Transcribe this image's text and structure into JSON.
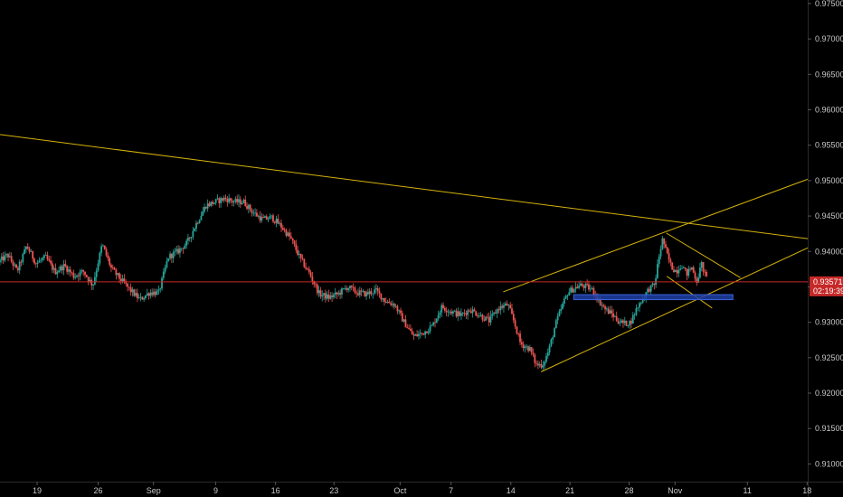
{
  "chart_data": {
    "type": "candlestick",
    "instrument": "",
    "ylim": [
      0.9075,
      0.9755
    ],
    "xlim": [
      0,
      128.4
    ],
    "y_ticks": [
      "0.97500",
      "0.97000",
      "0.96500",
      "0.96000",
      "0.95500",
      "0.95000",
      "0.94500",
      "0.94000",
      "0.93500",
      "0.93000",
      "0.92500",
      "0.92000",
      "0.91500",
      "0.91000"
    ],
    "y_tick_values": [
      0.975,
      0.97,
      0.965,
      0.96,
      0.955,
      0.95,
      0.945,
      0.94,
      0.935,
      0.93,
      0.925,
      0.92,
      0.915,
      0.91
    ],
    "x_ticks": [
      {
        "label": "19",
        "x": 5.9
      },
      {
        "label": "26",
        "x": 15.6
      },
      {
        "label": "Sep",
        "x": 24.4
      },
      {
        "label": "9",
        "x": 34.3
      },
      {
        "label": "16",
        "x": 43.8
      },
      {
        "label": "23",
        "x": 53.1
      },
      {
        "label": "Oct",
        "x": 63.6
      },
      {
        "label": "7",
        "x": 71.7
      },
      {
        "label": "14",
        "x": 81.2
      },
      {
        "label": "21",
        "x": 90.6
      },
      {
        "label": "28",
        "x": 100.0
      },
      {
        "label": "Nov",
        "x": 107.3
      },
      {
        "label": "11",
        "x": 118.8
      },
      {
        "label": "18",
        "x": 128.3
      }
    ],
    "colors": {
      "up": "#26a69a",
      "down": "#ef5350",
      "trend": "#d4b10c",
      "zone": "#1e3fa6",
      "price": "#c62828",
      "background": "#000000",
      "axis": "#2a2a2a"
    },
    "price_line": {
      "value": 0.93571,
      "label": "0.93571",
      "countdown": "02:19:39"
    },
    "anchors": [
      {
        "x": 0.0,
        "y": 0.9385
      },
      {
        "x": 1.5,
        "y": 0.9395
      },
      {
        "x": 3.0,
        "y": 0.9372
      },
      {
        "x": 4.5,
        "y": 0.9408
      },
      {
        "x": 6.0,
        "y": 0.9383
      },
      {
        "x": 7.5,
        "y": 0.9392
      },
      {
        "x": 9.0,
        "y": 0.9371
      },
      {
        "x": 10.5,
        "y": 0.938
      },
      {
        "x": 12.0,
        "y": 0.9365
      },
      {
        "x": 13.5,
        "y": 0.9372
      },
      {
        "x": 15.0,
        "y": 0.9352
      },
      {
        "x": 16.5,
        "y": 0.941
      },
      {
        "x": 18.0,
        "y": 0.9375
      },
      {
        "x": 19.5,
        "y": 0.936
      },
      {
        "x": 21.0,
        "y": 0.9345
      },
      {
        "x": 22.5,
        "y": 0.9332
      },
      {
        "x": 24.0,
        "y": 0.9342
      },
      {
        "x": 25.5,
        "y": 0.9342
      },
      {
        "x": 27.0,
        "y": 0.9392
      },
      {
        "x": 28.5,
        "y": 0.94
      },
      {
        "x": 30.0,
        "y": 0.9412
      },
      {
        "x": 31.5,
        "y": 0.944
      },
      {
        "x": 33.0,
        "y": 0.9465
      },
      {
        "x": 34.5,
        "y": 0.947
      },
      {
        "x": 36.0,
        "y": 0.9475
      },
      {
        "x": 37.5,
        "y": 0.947
      },
      {
        "x": 39.0,
        "y": 0.947
      },
      {
        "x": 40.5,
        "y": 0.9455
      },
      {
        "x": 42.0,
        "y": 0.9445
      },
      {
        "x": 43.5,
        "y": 0.9448
      },
      {
        "x": 45.0,
        "y": 0.9435
      },
      {
        "x": 46.5,
        "y": 0.9418
      },
      {
        "x": 48.0,
        "y": 0.939
      },
      {
        "x": 49.5,
        "y": 0.9368
      },
      {
        "x": 51.0,
        "y": 0.934
      },
      {
        "x": 52.5,
        "y": 0.9335
      },
      {
        "x": 54.0,
        "y": 0.934
      },
      {
        "x": 55.5,
        "y": 0.935
      },
      {
        "x": 57.0,
        "y": 0.9342
      },
      {
        "x": 58.5,
        "y": 0.934
      },
      {
        "x": 60.0,
        "y": 0.9345
      },
      {
        "x": 61.5,
        "y": 0.933
      },
      {
        "x": 63.0,
        "y": 0.9325
      },
      {
        "x": 64.5,
        "y": 0.93
      },
      {
        "x": 66.0,
        "y": 0.928
      },
      {
        "x": 67.5,
        "y": 0.9285
      },
      {
        "x": 69.0,
        "y": 0.9295
      },
      {
        "x": 70.5,
        "y": 0.9322
      },
      {
        "x": 72.0,
        "y": 0.9315
      },
      {
        "x": 73.5,
        "y": 0.931
      },
      {
        "x": 75.0,
        "y": 0.9318
      },
      {
        "x": 76.5,
        "y": 0.931
      },
      {
        "x": 78.0,
        "y": 0.9302
      },
      {
        "x": 79.5,
        "y": 0.932
      },
      {
        "x": 81.0,
        "y": 0.9325
      },
      {
        "x": 82.0,
        "y": 0.93
      },
      {
        "x": 83.0,
        "y": 0.927
      },
      {
        "x": 84.5,
        "y": 0.9262
      },
      {
        "x": 85.5,
        "y": 0.924
      },
      {
        "x": 86.5,
        "y": 0.924
      },
      {
        "x": 87.5,
        "y": 0.926
      },
      {
        "x": 88.5,
        "y": 0.9295
      },
      {
        "x": 89.5,
        "y": 0.932
      },
      {
        "x": 90.5,
        "y": 0.9342
      },
      {
        "x": 91.5,
        "y": 0.9348
      },
      {
        "x": 92.5,
        "y": 0.9352
      },
      {
        "x": 93.5,
        "y": 0.935
      },
      {
        "x": 94.5,
        "y": 0.9345
      },
      {
        "x": 95.5,
        "y": 0.933
      },
      {
        "x": 96.5,
        "y": 0.9318
      },
      {
        "x": 97.5,
        "y": 0.9312
      },
      {
        "x": 98.5,
        "y": 0.9302
      },
      {
        "x": 99.5,
        "y": 0.9298
      },
      {
        "x": 100.5,
        "y": 0.93
      },
      {
        "x": 101.5,
        "y": 0.932
      },
      {
        "x": 102.5,
        "y": 0.9335
      },
      {
        "x": 103.5,
        "y": 0.9348
      },
      {
        "x": 104.3,
        "y": 0.9352
      },
      {
        "x": 105.0,
        "y": 0.9392
      },
      {
        "x": 105.6,
        "y": 0.9418
      },
      {
        "x": 106.2,
        "y": 0.9398
      },
      {
        "x": 107.0,
        "y": 0.9378
      },
      {
        "x": 107.8,
        "y": 0.9372
      },
      {
        "x": 108.6,
        "y": 0.9382
      },
      {
        "x": 109.4,
        "y": 0.9368
      },
      {
        "x": 110.2,
        "y": 0.9378
      },
      {
        "x": 111.0,
        "y": 0.9358
      },
      {
        "x": 111.8,
        "y": 0.9382
      },
      {
        "x": 112.5,
        "y": 0.9362
      }
    ],
    "trend_lines": [
      {
        "name": "long-resistance",
        "x1": 0.0,
        "y1": 0.9565,
        "x2": 128.4,
        "y2": 0.9418
      },
      {
        "name": "channel-upper",
        "x1": 80.0,
        "y1": 0.9343,
        "x2": 128.4,
        "y2": 0.9502
      },
      {
        "name": "channel-lower",
        "x1": 86.0,
        "y1": 0.923,
        "x2": 128.4,
        "y2": 0.9405
      },
      {
        "name": "wedge-top",
        "x1": 105.9,
        "y1": 0.9426,
        "x2": 117.7,
        "y2": 0.9363
      },
      {
        "name": "wedge-bottom",
        "x1": 106.0,
        "y1": 0.9365,
        "x2": 113.2,
        "y2": 0.932
      }
    ],
    "zones": [
      {
        "name": "support-zone",
        "x1": 91.2,
        "x2": 116.5,
        "y_top": 0.9339,
        "y_bottom": 0.9332
      }
    ]
  }
}
